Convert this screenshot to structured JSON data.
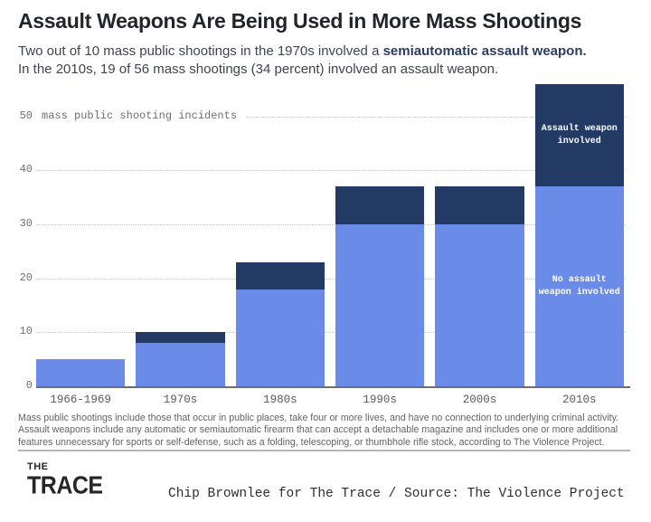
{
  "header": {
    "title": "Assault Weapons Are Being Used in More Mass Shootings",
    "subtitle_part1": "Two out of 10 mass public shootings in the 1970s involved a ",
    "subtitle_bold": "semiautomatic assault weapon.",
    "subtitle_part2": "In the 2010s, 19 of 56 mass shootings (34 percent) involved an assault weapon."
  },
  "chart_data": {
    "type": "bar",
    "stacked": true,
    "categories": [
      "1966-1969",
      "1970s",
      "1980s",
      "1990s",
      "2000s",
      "2010s"
    ],
    "series": [
      {
        "name": "No assault weapon involved",
        "color": "#6a8ce8",
        "values": [
          5,
          8,
          18,
          30,
          30,
          37
        ]
      },
      {
        "name": "Assault weapon involved",
        "color": "#233a65",
        "values": [
          0,
          2,
          5,
          7,
          7,
          19
        ]
      }
    ],
    "totals": [
      5,
      10,
      23,
      37,
      37,
      56
    ],
    "ylabel": "mass public shooting incidents",
    "yticks": [
      0,
      10,
      20,
      30,
      40,
      50
    ],
    "ylim": [
      0,
      56
    ],
    "grid": "horizontal dotted",
    "legend_position": "labels inside last bar",
    "bar_labels": {
      "assault": "Assault weapon\ninvolved",
      "no_assault": "No assault\nweapon involved"
    }
  },
  "footnote": "Mass public shootings include those that occur in public places, take four or more lives, and have no connection to underlying criminal activity. Assault weapons include any automatic or semiautomatic firearm that can accept a detachable magazine and includes one or more additional features unnecessary for sports or self-defense, such as a folding, telescoping, or thumbhole rifle stock, according to The Violence Project.",
  "footer": {
    "logo_line1": "THE",
    "logo_line2": "TRACE",
    "credit": "Chip Brownlee for The Trace / Source: The Violence Project"
  },
  "colors": {
    "light_blue": "#6a8ce8",
    "dark_navy": "#233a65",
    "gridline": "#c6c6c6",
    "axis_text": "#6e6e6e"
  }
}
